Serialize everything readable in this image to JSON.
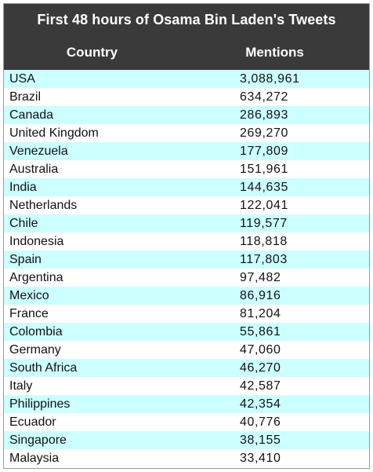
{
  "chart_data": {
    "type": "table",
    "title": "First 48 hours of Osama Bin Laden's Tweets",
    "columns": [
      "Country",
      "Mentions"
    ],
    "rows": [
      {
        "country": "USA",
        "mentions": "3,088,961"
      },
      {
        "country": "Brazil",
        "mentions": "634,272"
      },
      {
        "country": "Canada",
        "mentions": "286,893"
      },
      {
        "country": "United Kingdom",
        "mentions": "269,270"
      },
      {
        "country": "Venezuela",
        "mentions": "177,809"
      },
      {
        "country": "Australia",
        "mentions": "151,961"
      },
      {
        "country": "India",
        "mentions": "144,635"
      },
      {
        "country": "Netherlands",
        "mentions": "122,041"
      },
      {
        "country": "Chile",
        "mentions": "119,577"
      },
      {
        "country": "Indonesia",
        "mentions": "118,818"
      },
      {
        "country": "Spain",
        "mentions": "117,803"
      },
      {
        "country": "Argentina",
        "mentions": "97,482"
      },
      {
        "country": "Mexico",
        "mentions": "86,916"
      },
      {
        "country": "France",
        "mentions": "81,204"
      },
      {
        "country": "Colombia",
        "mentions": "55,861"
      },
      {
        "country": "Germany",
        "mentions": "47,060"
      },
      {
        "country": "South Africa",
        "mentions": "46,270"
      },
      {
        "country": "Italy",
        "mentions": "42,587"
      },
      {
        "country": "Philippines",
        "mentions": "42,354"
      },
      {
        "country": "Ecuador",
        "mentions": "40,776"
      },
      {
        "country": "Singapore",
        "mentions": "38,155"
      },
      {
        "country": "Malaysia",
        "mentions": "33,410"
      }
    ]
  },
  "colors": {
    "header_bg": "#3a3a3a",
    "header_text": "#ffffff",
    "stripe": "#ccffff",
    "body_text": "#111111"
  }
}
